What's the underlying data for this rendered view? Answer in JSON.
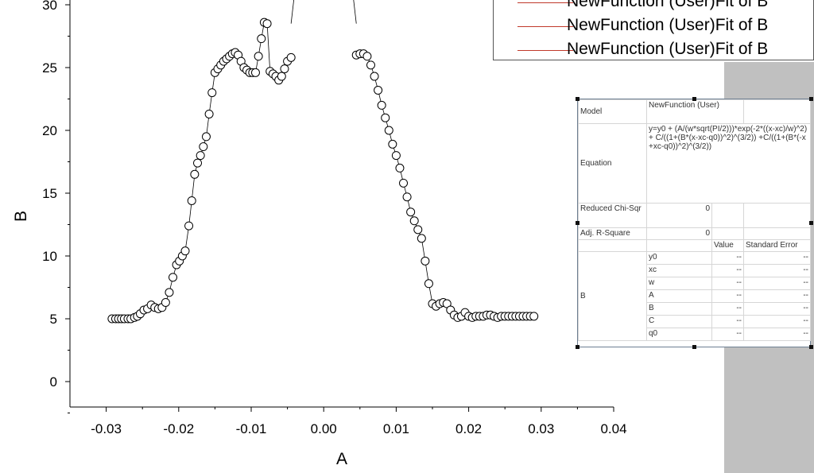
{
  "legend": {
    "entries": [
      "NewFunction (User)Fit of B",
      "NewFunction (User)Fit of B",
      "NewFunction (User)Fit of B"
    ],
    "line_color": "#c0392b"
  },
  "results_table": {
    "model_label": "Model",
    "model_value": "NewFunction (User)",
    "equation_label": "Equation",
    "equation_value": "y=y0 + (A/(w*sqrt(PI/2)))*exp(-2*((x-xc)/w)^2) + C/((1+(B*(x-xc-q0))^2)^(3/2)) +C/((1+(B*(-x+xc-q0))^2)^(3/2))",
    "chisqr_label": "Reduced Chi-Sqr",
    "chisqr_value": "0",
    "adjr_label": "Adj. R-Square",
    "adjr_value": "0",
    "value_header": "Value",
    "stderr_header": "Standard Error",
    "group_label": "B",
    "params": [
      {
        "name": "y0",
        "value": "--",
        "error": "--"
      },
      {
        "name": "xc",
        "value": "--",
        "error": "--"
      },
      {
        "name": "w",
        "value": "--",
        "error": "--"
      },
      {
        "name": "A",
        "value": "--",
        "error": "--"
      },
      {
        "name": "B",
        "value": "--",
        "error": "--"
      },
      {
        "name": "C",
        "value": "--",
        "error": "--"
      },
      {
        "name": "q0",
        "value": "--",
        "error": "--"
      }
    ]
  },
  "chart_data": {
    "type": "scatter",
    "xlabel": "A",
    "ylabel": "B",
    "xlim": [
      -0.035,
      0.04
    ],
    "ylim": [
      -2,
      30
    ],
    "xticks": [
      "-0.03",
      "-0.02",
      "-0.01",
      "0.00",
      "0.01",
      "0.02",
      "0.03",
      "0.04"
    ],
    "xtick_values": [
      -0.03,
      -0.02,
      -0.01,
      0.0,
      0.01,
      0.02,
      0.03,
      0.04
    ],
    "yticks": [
      "0",
      "5",
      "10",
      "15",
      "20",
      "25",
      "30"
    ],
    "ytick_values": [
      0,
      5,
      10,
      15,
      20,
      25,
      30
    ],
    "series": [
      {
        "marker": "open-circle",
        "connect": true,
        "x": [
          -0.0292,
          -0.0287,
          -0.0283,
          -0.0279,
          -0.0275,
          -0.027,
          -0.0266,
          -0.0261,
          -0.0257,
          -0.0253,
          -0.0248,
          -0.0243,
          -0.0238,
          -0.0233,
          -0.0228,
          -0.0223,
          -0.0218,
          -0.0213,
          -0.0208,
          -0.0203,
          -0.0199,
          -0.0195,
          -0.0191,
          -0.0186,
          -0.0182,
          -0.0178,
          -0.0174,
          -0.017,
          -0.0166,
          -0.0162,
          -0.0158,
          -0.0154,
          -0.015,
          -0.0146,
          -0.0142,
          -0.0138,
          -0.0134,
          -0.013,
          -0.0126,
          -0.0122,
          -0.0118,
          -0.0114,
          -0.011,
          -0.0106,
          -0.0102,
          -0.0098,
          -0.0094,
          -0.009,
          -0.0086,
          -0.0082,
          -0.0078,
          -0.0074,
          -0.007,
          -0.0066,
          -0.0062,
          -0.0058,
          -0.0054,
          -0.005,
          -0.0045,
          0.0045,
          0.005,
          0.0055,
          0.006,
          0.0065,
          0.007,
          0.0075,
          0.008,
          0.0085,
          0.009,
          0.0095,
          0.01,
          0.0105,
          0.011,
          0.0115,
          0.012,
          0.0125,
          0.013,
          0.0135,
          0.014,
          0.0145,
          0.015,
          0.0155,
          0.016,
          0.0165,
          0.017,
          0.0175,
          0.018,
          0.0185,
          0.019,
          0.0195,
          0.02,
          0.0205,
          0.021,
          0.0215,
          0.022,
          0.0225,
          0.023,
          0.0235,
          0.024,
          0.0245,
          0.025,
          0.0255,
          0.026,
          0.0265,
          0.027,
          0.0275,
          0.028,
          0.0285,
          0.029
        ],
        "y": [
          5.0,
          5.0,
          5.0,
          5.0,
          5.0,
          5.0,
          5.0,
          5.1,
          5.2,
          5.4,
          5.7,
          5.8,
          6.1,
          5.9,
          5.8,
          5.9,
          6.3,
          7.1,
          8.3,
          9.3,
          9.6,
          10.0,
          10.4,
          12.4,
          14.4,
          16.5,
          17.4,
          18.0,
          18.7,
          19.5,
          21.3,
          23.0,
          24.6,
          24.9,
          25.2,
          25.5,
          25.7,
          25.9,
          26.1,
          26.2,
          26.0,
          25.5,
          25.0,
          24.8,
          24.6,
          24.6,
          24.6,
          25.9,
          27.3,
          28.6,
          28.5,
          24.7,
          24.5,
          24.3,
          24.0,
          24.3,
          24.9,
          25.5,
          25.8,
          26.0,
          26.1,
          26.1,
          25.9,
          25.2,
          24.3,
          23.2,
          22.0,
          21.0,
          20.0,
          18.9,
          18.0,
          17.0,
          15.8,
          14.7,
          13.5,
          12.8,
          12.1,
          11.4,
          9.6,
          7.8,
          6.2,
          6.0,
          6.2,
          6.3,
          6.2,
          5.7,
          5.3,
          5.1,
          5.2,
          5.5,
          5.2,
          5.1,
          5.2,
          5.2,
          5.2,
          5.3,
          5.3,
          5.2,
          5.1,
          5.2,
          5.2,
          5.2,
          5.2,
          5.2,
          5.2,
          5.2,
          5.2,
          5.2,
          5.2
        ],
        "stub_left": {
          "from": [
            -0.0045,
            28.5
          ],
          "to": [
            -0.004,
            31
          ]
        },
        "stub_right": {
          "from": [
            0.004,
            31
          ],
          "to": [
            0.0045,
            28.5
          ]
        }
      }
    ]
  }
}
